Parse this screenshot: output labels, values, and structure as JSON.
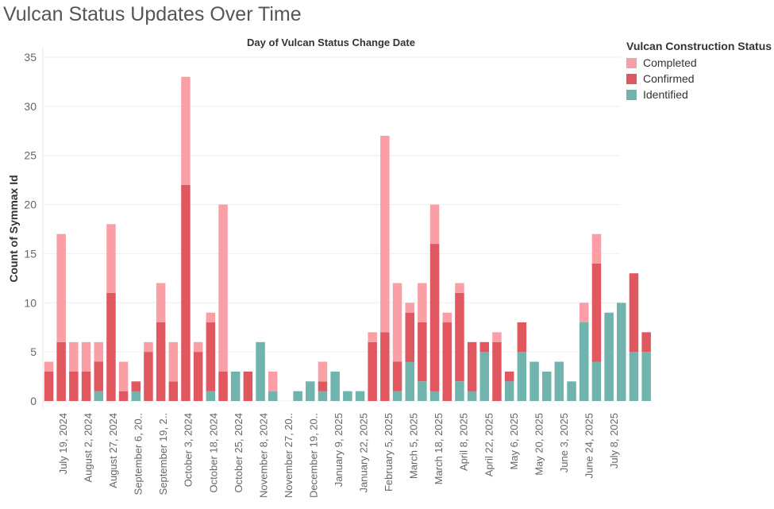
{
  "page_title": "Vulcan Status Updates Over Time",
  "colors": {
    "Completed": "#fa9fa6",
    "Confirmed": "#e05760",
    "Identified": "#70b4ad",
    "axis_text": "#666666",
    "grid": "#eeeeee"
  },
  "legend": {
    "title": "Vulcan Construction Status",
    "items": [
      "Completed",
      "Confirmed",
      "Identified"
    ]
  },
  "chart_data": {
    "type": "bar",
    "stacked": true,
    "title": "Day of Vulcan Status Change Date",
    "xlabel": "",
    "ylabel": "Count of Symmax Id",
    "ylim": [
      0,
      35
    ],
    "yticks": [
      0,
      5,
      10,
      15,
      20,
      25,
      30,
      35
    ],
    "legend_position": "top-right",
    "grid": true,
    "x_tick_labels": [
      "July 19, 2024",
      "August 2, 2024",
      "August 27, 2024",
      "September 6, 20..",
      "September 19, 2..",
      "October 3, 2024",
      "October 18, 2024",
      "October 25, 2024",
      "November 8, 2024",
      "November 27, 20..",
      "December 19, 20..",
      "January 9, 2025",
      "January 22, 2025",
      "February 5, 2025",
      "March 5, 2025",
      "March 18, 2025",
      "April 8, 2025",
      "April 22, 2025",
      "May 6, 2025",
      "May 20, 2025",
      "June 3, 2025",
      "June 24, 2025",
      "July 8, 2025"
    ],
    "series": [
      {
        "name": "Identified",
        "values": [
          0,
          0,
          0,
          0,
          1,
          0,
          0,
          1,
          0,
          0,
          0,
          0,
          0,
          1,
          0,
          3,
          0,
          6,
          1,
          0,
          1,
          2,
          1,
          3,
          1,
          1,
          0,
          0,
          1,
          4,
          2,
          1,
          0,
          2,
          1,
          5,
          0,
          2,
          5,
          4,
          3,
          4,
          2,
          8,
          4,
          9,
          10,
          5,
          5
        ]
      },
      {
        "name": "Confirmed",
        "values": [
          3,
          6,
          3,
          3,
          3,
          11,
          1,
          1,
          5,
          8,
          2,
          22,
          5,
          7,
          3,
          0,
          3,
          0,
          0,
          0,
          0,
          0,
          1,
          0,
          0,
          0,
          6,
          7,
          3,
          5,
          6,
          15,
          8,
          9,
          5,
          1,
          6,
          1,
          3,
          0,
          0,
          0,
          0,
          0,
          10,
          0,
          0,
          8,
          2
        ]
      },
      {
        "name": "Completed",
        "values": [
          1,
          11,
          3,
          3,
          2,
          7,
          3,
          0,
          1,
          4,
          4,
          11,
          1,
          1,
          17,
          0,
          0,
          0,
          2,
          0,
          0,
          0,
          2,
          0,
          0,
          0,
          1,
          20,
          8,
          1,
          4,
          4,
          1,
          1,
          0,
          0,
          1,
          0,
          0,
          0,
          0,
          0,
          0,
          2,
          3,
          0,
          0,
          0,
          0
        ]
      }
    ]
  }
}
